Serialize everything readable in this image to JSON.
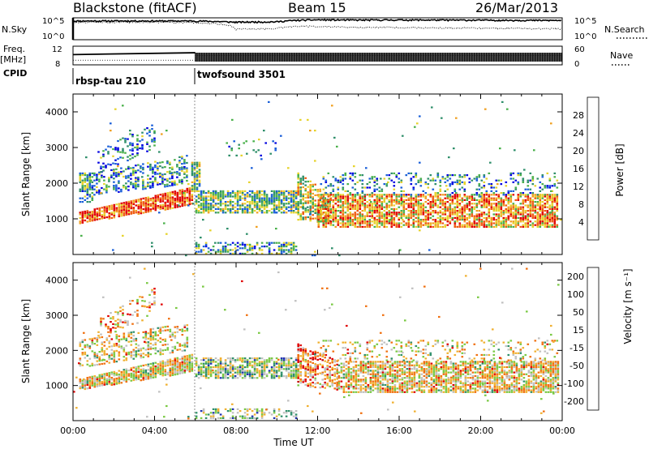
{
  "header": {
    "station": "Blackstone (fitACF)",
    "beam": "Beam 15",
    "date": "26/Mar/2013"
  },
  "chart_data": [
    {
      "type": "line",
      "panel": "noise",
      "left_label": "N.Sky",
      "right_label": "N.Search",
      "left_ticks": [
        "10^5",
        "10^0"
      ],
      "right_ticks": [
        "10^5",
        "10^0"
      ],
      "yscale": "log",
      "ylim": [
        1,
        100000
      ],
      "x": [
        0,
        2,
        4,
        6,
        8,
        10,
        11,
        12,
        14,
        16,
        18,
        20,
        22,
        24
      ],
      "series": [
        {
          "name": "N.Sky",
          "style": "solid",
          "values": [
            40000,
            42000,
            41000,
            40000,
            20000,
            25000,
            60000,
            80000,
            70000,
            75000,
            70000,
            65000,
            60000,
            55000
          ]
        },
        {
          "name": "N.Search",
          "style": "dotted",
          "values": [
            20000,
            20000,
            20000,
            15000,
            300,
            500,
            2000,
            1500,
            800,
            900,
            700,
            600,
            500,
            400
          ]
        }
      ]
    },
    {
      "type": "line",
      "panel": "frequency",
      "left_label": "Freq.",
      "left_unit": "[MHz]",
      "right_label": "Nave",
      "left_ticks": [
        "12",
        "8"
      ],
      "right_ticks": [
        "60",
        "0"
      ],
      "ylim_left": [
        8,
        12
      ],
      "ylim_right": [
        0,
        60
      ],
      "x": [
        0,
        6,
        6,
        24
      ],
      "series": [
        {
          "name": "Freq.",
          "style": "solid",
          "values": [
            10.2,
            10.6,
            11.4,
            11.4
          ]
        },
        {
          "name": "Nave",
          "style": "dotted",
          "values": [
            15,
            15,
            30,
            30
          ]
        }
      ]
    },
    {
      "type": "table",
      "panel": "cpid",
      "label": "CPID",
      "segments": [
        {
          "start": 0,
          "end": 6,
          "name": "rbsp-tau 210"
        },
        {
          "start": 6,
          "end": 24,
          "name": "twofsound 3501"
        }
      ]
    },
    {
      "type": "heatmap",
      "panel": "power",
      "ylabel": "Slant Range [km]",
      "xlim": [
        0,
        24
      ],
      "ylim": [
        0,
        4500
      ],
      "yticks": [
        1000,
        2000,
        3000,
        4000
      ],
      "colorbar": {
        "label": "Power [dB]",
        "ticks": [
          "4",
          "8",
          "12",
          "16",
          "20",
          "24",
          "28"
        ],
        "range": [
          0,
          30
        ],
        "colors": [
          "#0000e0",
          "#1a5fd8",
          "#2f8f6a",
          "#49b04a",
          "#e6d32c",
          "#f0a020",
          "#ee5a10",
          "#e00000"
        ]
      },
      "regions": [
        {
          "t0": 0.3,
          "t1": 5.8,
          "r0a": 900,
          "r1a": 1200,
          "r0b": 1400,
          "r1b": 1900,
          "level": 0.85,
          "density": 0.85
        },
        {
          "t0": 0.3,
          "t1": 1.0,
          "r0a": 1500,
          "r1a": 2300,
          "r0b": 1500,
          "r1b": 2300,
          "level": 0.35,
          "density": 0.6
        },
        {
          "t0": 1.0,
          "t1": 5.6,
          "r0a": 1700,
          "r1a": 2300,
          "r0b": 2000,
          "r1b": 2800,
          "level": 0.3,
          "density": 0.45
        },
        {
          "t0": 1.2,
          "t1": 4.0,
          "r0a": 2300,
          "r1a": 2900,
          "r0b": 3000,
          "r1b": 3800,
          "level": 0.25,
          "density": 0.3
        },
        {
          "t0": 5.8,
          "t1": 6.2,
          "r0a": 1800,
          "r1a": 2600,
          "r0b": 1800,
          "r1b": 2600,
          "level": 0.45,
          "density": 0.7
        },
        {
          "t0": 6.0,
          "t1": 11.0,
          "r0a": 1200,
          "r1a": 1800,
          "r0b": 1200,
          "r1b": 1800,
          "level": 0.4,
          "density": 0.75
        },
        {
          "t0": 6.0,
          "t1": 11.0,
          "r0a": 50,
          "r1a": 350,
          "r0b": 50,
          "r1b": 350,
          "level": 0.35,
          "density": 0.45
        },
        {
          "t0": 11.0,
          "t1": 12.6,
          "r0a": 1000,
          "r1a": 2300,
          "r0b": 900,
          "r1b": 1700,
          "level": 0.55,
          "density": 0.6
        },
        {
          "t0": 12.0,
          "t1": 23.8,
          "r0a": 800,
          "r1a": 1700,
          "r0b": 800,
          "r1b": 1700,
          "level": 0.7,
          "density": 0.75
        },
        {
          "t0": 12.0,
          "t1": 23.8,
          "r0a": 1700,
          "r1a": 2300,
          "r0b": 1700,
          "r1b": 2300,
          "level": 0.3,
          "density": 0.25
        },
        {
          "t0": 7.5,
          "t1": 10.0,
          "r0a": 2800,
          "r1a": 3200,
          "r0b": 2800,
          "r1b": 3200,
          "level": 0.25,
          "density": 0.12
        },
        {
          "t0": 0.0,
          "t1": 24.0,
          "r0a": 0,
          "r1a": 4400,
          "r0b": 0,
          "r1b": 4400,
          "level": 0.4,
          "density": 0.006
        }
      ]
    },
    {
      "type": "heatmap",
      "panel": "velocity",
      "ylabel": "Slant Range [km]",
      "xlabel": "Time UT",
      "xticks": [
        "00:00",
        "04:00",
        "08:00",
        "12:00",
        "16:00",
        "20:00",
        "00:00"
      ],
      "xlim": [
        0,
        24
      ],
      "ylim": [
        0,
        4500
      ],
      "yticks": [
        1000,
        2000,
        3000,
        4000
      ],
      "colorbar": {
        "label": "Velocity [m s⁻¹]",
        "ticks": [
          "200",
          "100",
          "50",
          "15",
          "-15",
          "-50",
          "-100",
          "-200"
        ],
        "range": [
          -250,
          250
        ],
        "colors": [
          "#2030b0",
          "#2f8f6a",
          "#7ac943",
          "#c0c0c0",
          "#f0b030",
          "#f07010",
          "#e00000",
          "#c00000"
        ]
      },
      "regions": [
        {
          "t0": 0.3,
          "t1": 5.8,
          "r0a": 900,
          "r1a": 1200,
          "r0b": 1400,
          "r1b": 1900,
          "level": 0.5,
          "density": 0.85
        },
        {
          "t0": 0.3,
          "t1": 5.6,
          "r0a": 1500,
          "r1a": 2300,
          "r0b": 2000,
          "r1b": 2800,
          "level": 0.48,
          "density": 0.45
        },
        {
          "t0": 1.2,
          "t1": 4.0,
          "r0a": 2300,
          "r1a": 2900,
          "r0b": 3000,
          "r1b": 3800,
          "level": 0.55,
          "density": 0.25
        },
        {
          "t0": 6.0,
          "t1": 11.0,
          "r0a": 1200,
          "r1a": 1800,
          "r0b": 1200,
          "r1b": 1800,
          "level": 0.35,
          "density": 0.75
        },
        {
          "t0": 6.0,
          "t1": 11.0,
          "r0a": 50,
          "r1a": 350,
          "r0b": 50,
          "r1b": 350,
          "level": 0.35,
          "density": 0.4
        },
        {
          "t0": 11.0,
          "t1": 13.0,
          "r0a": 1000,
          "r1a": 2200,
          "r0b": 900,
          "r1b": 1700,
          "level": 0.62,
          "density": 0.6
        },
        {
          "t0": 13.0,
          "t1": 23.8,
          "r0a": 800,
          "r1a": 1700,
          "r0b": 800,
          "r1b": 1700,
          "level": 0.5,
          "density": 0.75
        },
        {
          "t0": 12.0,
          "t1": 23.8,
          "r0a": 1700,
          "r1a": 2300,
          "r0b": 1700,
          "r1b": 2300,
          "level": 0.5,
          "density": 0.2
        },
        {
          "t0": 0.0,
          "t1": 24.0,
          "r0a": 0,
          "r1a": 4400,
          "r0b": 0,
          "r1b": 4400,
          "level": 0.5,
          "density": 0.006
        }
      ]
    }
  ]
}
